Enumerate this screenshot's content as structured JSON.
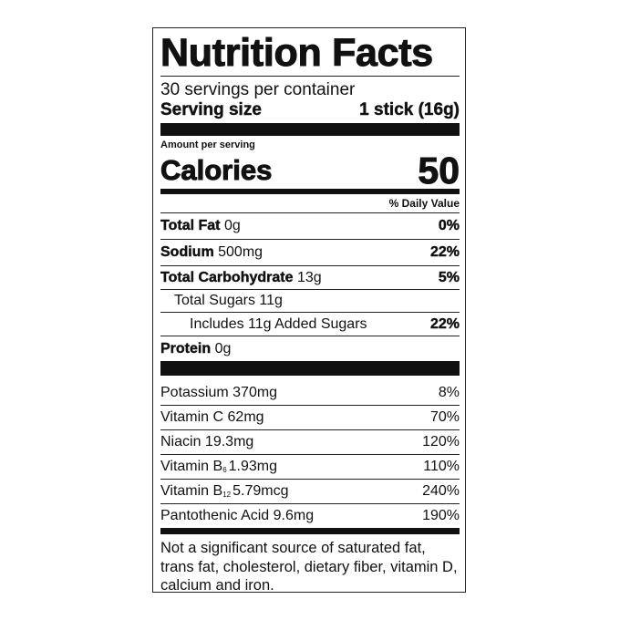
{
  "title": "Nutrition Facts",
  "servings_per_container": "30 servings per container",
  "serving_size": {
    "label": "Serving size",
    "value": "1 stick (16g)"
  },
  "amount_per_serving": "Amount per serving",
  "calories": {
    "label": "Calories",
    "value": "50"
  },
  "daily_value_header": "% Daily Value",
  "nutrients": [
    {
      "name": "Total Fat",
      "amount": "0g",
      "dv": "0%"
    },
    {
      "name": "Sodium",
      "amount": "500mg",
      "dv": "22%"
    },
    {
      "name": "Total Carbohydrate",
      "amount": "13g",
      "dv": "5%"
    },
    {
      "name": "Total Sugars",
      "amount": "11g",
      "dv": ""
    },
    {
      "name": "Includes 11g Added Sugars",
      "amount": "",
      "dv": "22%"
    },
    {
      "name": "Protein",
      "amount": "0g",
      "dv": ""
    }
  ],
  "vitamins": [
    {
      "name": "Potassium",
      "sub": "",
      "amount": "370mg",
      "dv": "8%"
    },
    {
      "name": "Vitamin C",
      "sub": "",
      "amount": "62mg",
      "dv": "70%"
    },
    {
      "name": "Niacin",
      "sub": "",
      "amount": "19.3mg",
      "dv": "120%"
    },
    {
      "name": "Vitamin B",
      "sub": "6",
      "amount": "1.93mg",
      "dv": "110%"
    },
    {
      "name": "Vitamin B",
      "sub": "12",
      "amount": "5.79mcg",
      "dv": "240%"
    },
    {
      "name": "Pantothenic Acid",
      "sub": "",
      "amount": "9.6mg",
      "dv": "190%"
    }
  ],
  "footnote": "Not a significant source of saturated fat, trans fat, cholesterol, dietary fiber, vitamin D, calcium and iron."
}
